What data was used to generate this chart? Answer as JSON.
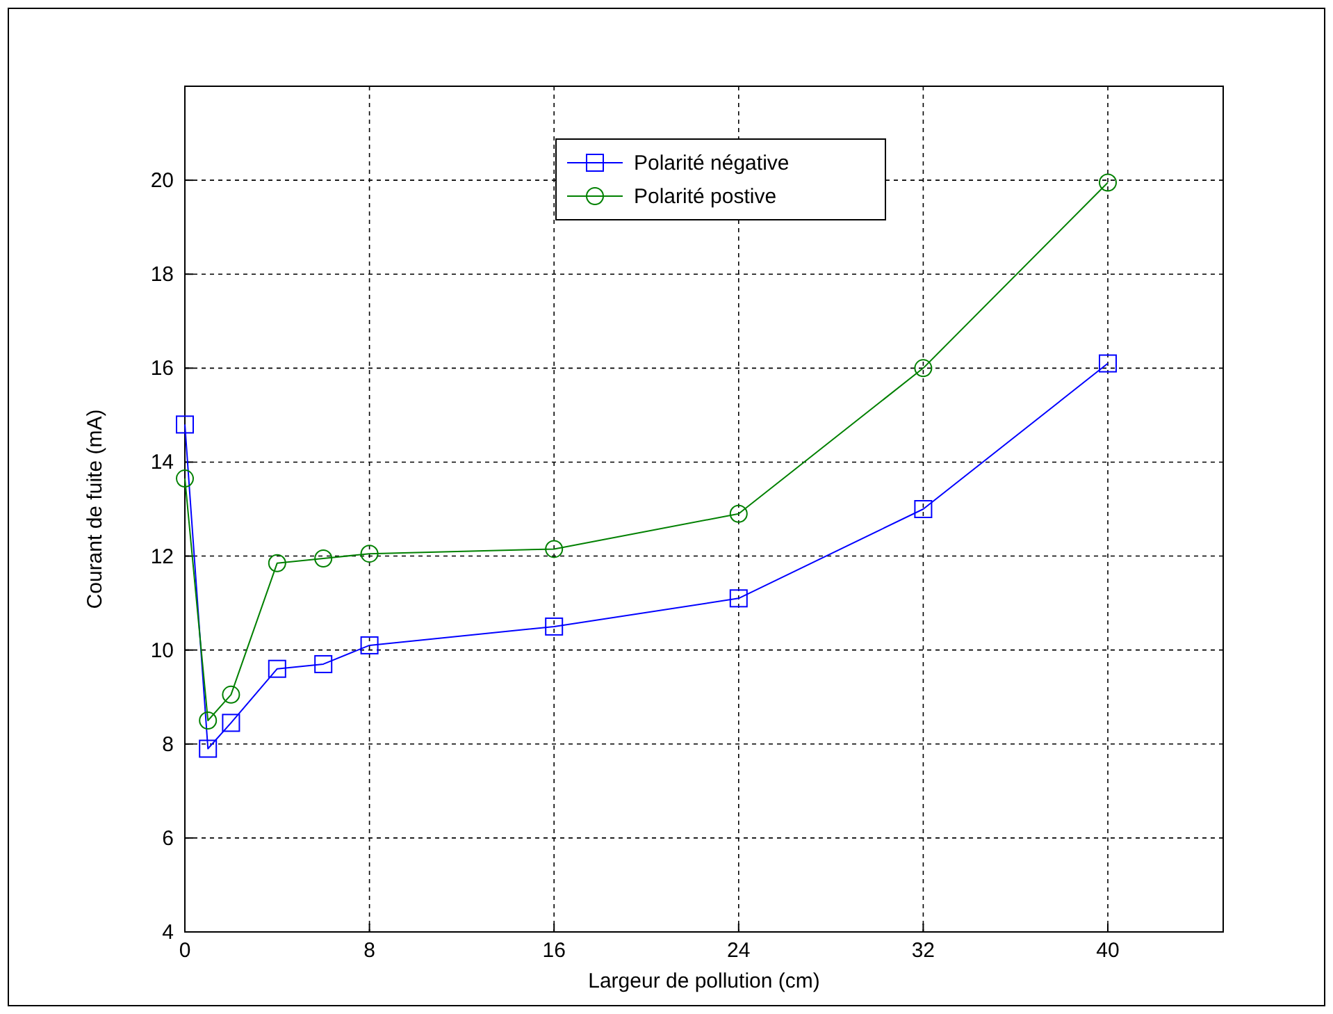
{
  "chart_data": {
    "type": "line",
    "xlabel": "Largeur de pollution (cm)",
    "ylabel": "Courant de fuite (mA)",
    "x": [
      0,
      1,
      2,
      4,
      6,
      8,
      16,
      24,
      32,
      40
    ],
    "series": [
      {
        "name": "Polarité négative",
        "color": "#0000ff",
        "marker": "square",
        "values": [
          14.8,
          7.9,
          8.45,
          9.6,
          9.7,
          10.1,
          10.5,
          11.1,
          13.0,
          16.1
        ]
      },
      {
        "name": "Polarité postive",
        "color": "#008000",
        "marker": "circle",
        "values": [
          13.65,
          8.5,
          9.05,
          11.85,
          11.95,
          12.05,
          12.15,
          12.9,
          16.0,
          19.95
        ]
      }
    ],
    "xlim": [
      0,
      45
    ],
    "xticks": [
      0,
      8,
      16,
      24,
      32,
      40
    ],
    "ylim": [
      4,
      22
    ],
    "yticks": [
      4,
      6,
      8,
      10,
      12,
      14,
      16,
      18,
      20
    ],
    "grid": true,
    "legend": "top",
    "line_style": "solid"
  }
}
